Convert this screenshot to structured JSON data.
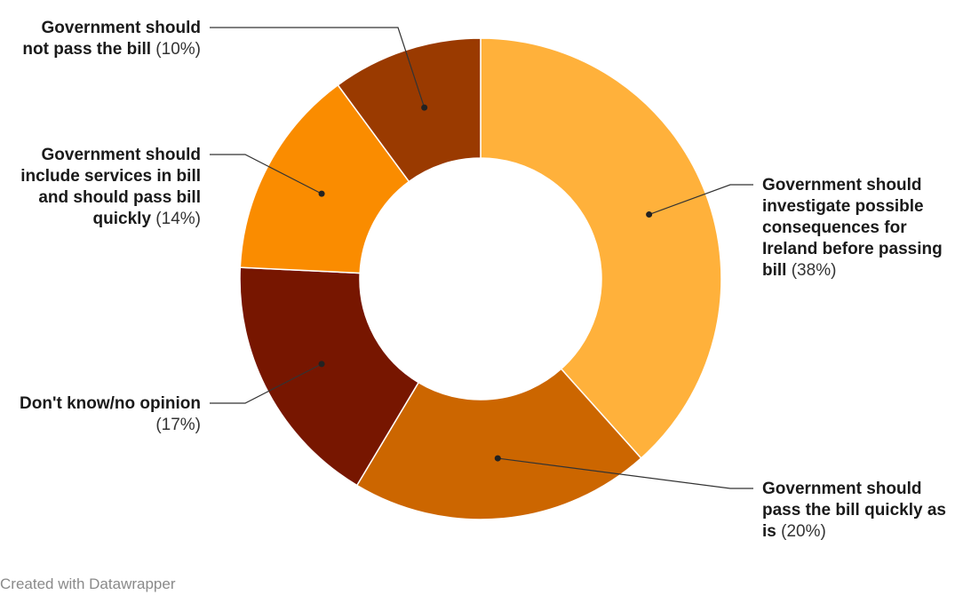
{
  "chart_data": {
    "type": "pie",
    "donut": true,
    "start": "top, clockwise",
    "slices": [
      {
        "label_lines": [
          "Government should",
          "investigate possible",
          "consequences for",
          "Ireland before passing",
          "bill"
        ],
        "pct_text": "(38%)",
        "value": 38,
        "color": "#ffb13b",
        "side": "right"
      },
      {
        "label_lines": [
          "Government should",
          "pass the bill quickly as",
          "is"
        ],
        "pct_text": "(20%)",
        "value": 20,
        "color": "#cc6600",
        "side": "right"
      },
      {
        "label_lines": [
          "Don't know/no opinion"
        ],
        "pct_text": "(17%)",
        "value": 17,
        "color": "#771600",
        "side": "left",
        "pct_on_new_line": true
      },
      {
        "label_lines": [
          "Government should",
          "include services in bill",
          "and should pass bill",
          "quickly"
        ],
        "pct_text": "(14%)",
        "value": 14,
        "color": "#fa8c00",
        "side": "left"
      },
      {
        "label_lines": [
          "Government should",
          "not pass the bill"
        ],
        "pct_text": "(10%)",
        "value": 10,
        "color": "#9a3a00",
        "side": "left"
      }
    ]
  },
  "credit": "Created with Datawrapper"
}
